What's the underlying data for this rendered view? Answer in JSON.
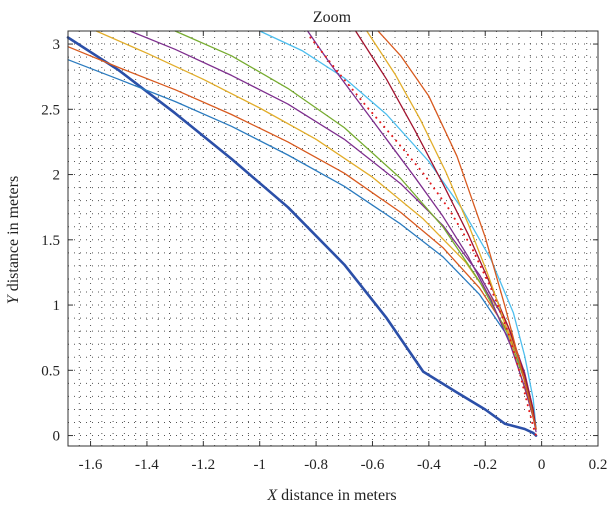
{
  "chart_data": {
    "type": "line",
    "title": "Zoom",
    "xlabel": "X distance in meters",
    "xlabel_var": "X",
    "xlabel_rest": " distance in meters",
    "ylabel": "Y distance in meters",
    "ylabel_var": "Y",
    "ylabel_rest": " distance in meters",
    "xlim": [
      -1.68,
      0.2
    ],
    "ylim": [
      -0.08,
      3.1
    ],
    "xticks": [
      -1.6,
      -1.4,
      -1.2,
      -1,
      -0.8,
      -0.6,
      -0.4,
      -0.2,
      0,
      0.2
    ],
    "xtick_labels": [
      "-1.6",
      "-1.4",
      "-1.2",
      "-1",
      "-0.8",
      "-0.6",
      "-0.4",
      "-0.2",
      "0",
      "0.2"
    ],
    "yticks": [
      0,
      0.5,
      1,
      1.5,
      2,
      2.5,
      3
    ],
    "ytick_labels": [
      "0",
      "0.5",
      "1",
      "1.5",
      "2",
      "2.5",
      "3"
    ],
    "grid": "dotted",
    "series": [
      {
        "color": "#2b4fa8",
        "width": 2.6,
        "style": "solid",
        "x": [
          -1.68,
          -1.5,
          -1.3,
          -1.1,
          -0.9,
          -0.7,
          -0.55,
          -0.42,
          -0.3,
          -0.2,
          -0.13,
          -0.06,
          -0.03,
          -0.02
        ],
        "y": [
          3.05,
          2.8,
          2.47,
          2.12,
          1.75,
          1.31,
          0.9,
          0.49,
          0.33,
          0.2,
          0.09,
          0.05,
          0.02,
          0.0
        ]
      },
      {
        "color": "#2b7bbf",
        "width": 1.3,
        "style": "solid",
        "x": [
          -1.68,
          -1.5,
          -1.3,
          -1.1,
          -0.9,
          -0.7,
          -0.5,
          -0.35,
          -0.22,
          -0.12,
          -0.06,
          -0.03,
          -0.02
        ],
        "y": [
          2.88,
          2.73,
          2.56,
          2.37,
          2.15,
          1.91,
          1.62,
          1.37,
          1.08,
          0.76,
          0.45,
          0.18,
          0.05
        ]
      },
      {
        "color": "#d85a1f",
        "width": 1.3,
        "style": "solid",
        "x": [
          -1.68,
          -1.5,
          -1.3,
          -1.1,
          -0.9,
          -0.7,
          -0.5,
          -0.35,
          -0.22,
          -0.12,
          -0.06,
          -0.03,
          -0.02
        ],
        "y": [
          2.98,
          2.82,
          2.65,
          2.46,
          2.25,
          2.01,
          1.71,
          1.44,
          1.13,
          0.8,
          0.47,
          0.19,
          0.05
        ]
      },
      {
        "color": "#e2ad2a",
        "width": 1.3,
        "style": "solid",
        "x": [
          -1.58,
          -1.4,
          -1.2,
          -1.0,
          -0.8,
          -0.6,
          -0.42,
          -0.27,
          -0.15,
          -0.08,
          -0.04,
          -0.02
        ],
        "y": [
          3.1,
          2.93,
          2.73,
          2.51,
          2.27,
          1.98,
          1.66,
          1.33,
          0.96,
          0.6,
          0.27,
          0.06
        ]
      },
      {
        "color": "#7e2f8e",
        "width": 1.3,
        "style": "solid",
        "x": [
          -1.46,
          -1.3,
          -1.1,
          -0.9,
          -0.7,
          -0.5,
          -0.35,
          -0.22,
          -0.12,
          -0.06,
          -0.03,
          -0.02
        ],
        "y": [
          3.1,
          2.96,
          2.76,
          2.54,
          2.27,
          1.93,
          1.61,
          1.23,
          0.84,
          0.48,
          0.2,
          0.05
        ]
      },
      {
        "color": "#77ac30",
        "width": 1.3,
        "style": "solid",
        "x": [
          -1.3,
          -1.1,
          -0.9,
          -0.7,
          -0.5,
          -0.35,
          -0.22,
          -0.12,
          -0.06,
          -0.03,
          -0.02
        ],
        "y": [
          3.1,
          2.91,
          2.66,
          2.36,
          1.97,
          1.6,
          1.18,
          0.78,
          0.42,
          0.17,
          0.05
        ]
      },
      {
        "color": "#4dbeee",
        "width": 1.3,
        "style": "solid",
        "x": [
          -1.0,
          -0.85,
          -0.7,
          -0.55,
          -0.4,
          -0.28,
          -0.18,
          -0.1,
          -0.06,
          -0.03,
          -0.02
        ],
        "y": [
          3.1,
          2.95,
          2.74,
          2.46,
          2.1,
          1.73,
          1.35,
          0.94,
          0.61,
          0.28,
          0.06
        ]
      },
      {
        "color": "#a2142f",
        "width": 1.3,
        "style": "solid",
        "x": [
          -0.66,
          -0.55,
          -0.45,
          -0.35,
          -0.26,
          -0.18,
          -0.11,
          -0.06,
          -0.03,
          -0.02
        ],
        "y": [
          3.1,
          2.73,
          2.34,
          1.93,
          1.54,
          1.15,
          0.79,
          0.46,
          0.2,
          0.05
        ]
      },
      {
        "color": "#e2ad2a",
        "width": 1.3,
        "style": "solid",
        "x": [
          -0.62,
          -0.52,
          -0.43,
          -0.34,
          -0.26,
          -0.19,
          -0.13,
          -0.08,
          -0.04,
          -0.02
        ],
        "y": [
          3.1,
          2.77,
          2.42,
          2.02,
          1.62,
          1.23,
          0.86,
          0.5,
          0.22,
          0.05
        ]
      },
      {
        "color": "#7e2f8e",
        "width": 1.3,
        "style": "solid",
        "x": [
          -0.83,
          -0.75,
          -0.65,
          -0.55,
          -0.45,
          -0.35,
          -0.26,
          -0.18,
          -0.11,
          -0.06,
          -0.03,
          -0.02
        ],
        "y": [
          3.1,
          2.85,
          2.56,
          2.27,
          1.98,
          1.68,
          1.37,
          1.04,
          0.69,
          0.37,
          0.14,
          0.03
        ]
      },
      {
        "color": "#d85a1f",
        "width": 1.3,
        "style": "solid",
        "x": [
          -0.58,
          -0.5,
          -0.4,
          -0.3,
          -0.2,
          -0.13,
          -0.08,
          -0.04,
          -0.02
        ],
        "y": [
          3.1,
          2.91,
          2.6,
          2.14,
          1.52,
          0.99,
          0.58,
          0.24,
          0.05
        ]
      },
      {
        "color": "#e41a1c",
        "width": 2.0,
        "style": "dotted",
        "x": [
          -0.82,
          -0.72,
          -0.62,
          -0.52,
          -0.42,
          -0.33,
          -0.25,
          -0.18,
          -0.12,
          -0.08,
          -0.05,
          -0.03,
          -0.02
        ],
        "y": [
          3.05,
          2.78,
          2.52,
          2.27,
          2.01,
          1.74,
          1.45,
          1.13,
          0.8,
          0.5,
          0.24,
          0.07,
          0.0
        ]
      }
    ]
  }
}
